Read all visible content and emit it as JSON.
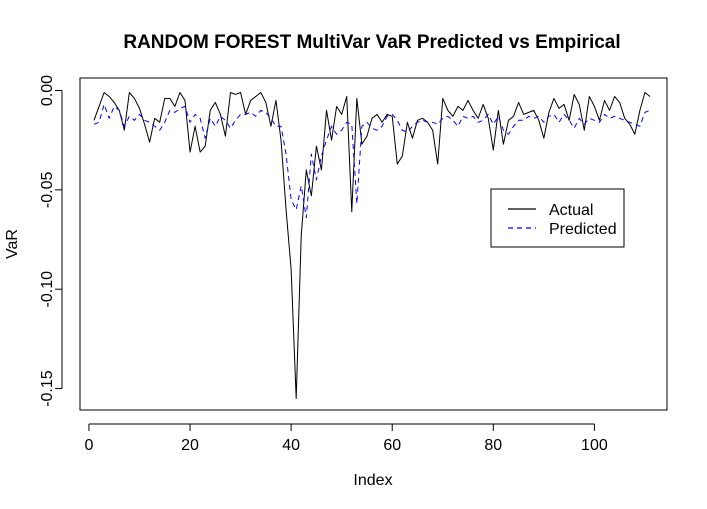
{
  "chart_data": {
    "type": "line",
    "title": "RANDOM FOREST MultiVar VaR Predicted vs Empirical",
    "xlabel": "Index",
    "ylabel": "VaR",
    "xlim": [
      1,
      111
    ],
    "ylim": [
      -0.155,
      0
    ],
    "x_ticks": [
      0,
      20,
      40,
      60,
      80,
      100
    ],
    "y_ticks": [
      -0.15,
      -0.1,
      -0.05,
      0.0
    ],
    "x_tick_labels": [
      "0",
      "20",
      "40",
      "60",
      "80",
      "100"
    ],
    "y_tick_labels": [
      "-0.15",
      "-0.10",
      "-0.05",
      "0.00"
    ],
    "legend": {
      "position": "right",
      "entries": [
        "Actual",
        "Predicted"
      ]
    },
    "series": [
      {
        "name": "Actual",
        "color": "#000000",
        "style": "solid",
        "values": [
          -0.015,
          -0.008,
          -0.001,
          -0.003,
          -0.006,
          -0.01,
          -0.02,
          -0.001,
          -0.004,
          -0.009,
          -0.017,
          -0.026,
          -0.014,
          -0.016,
          -0.004,
          -0.004,
          -0.008,
          -0.001,
          -0.005,
          -0.031,
          -0.018,
          -0.031,
          -0.028,
          -0.01,
          -0.006,
          -0.012,
          -0.023,
          -0.001,
          -0.002,
          -0.001,
          -0.012,
          -0.005,
          -0.003,
          -0.001,
          -0.006,
          -0.018,
          -0.005,
          -0.025,
          -0.06,
          -0.09,
          -0.155,
          -0.073,
          -0.04,
          -0.053,
          -0.028,
          -0.04,
          -0.01,
          -0.025,
          -0.008,
          -0.012,
          -0.003,
          -0.061,
          -0.004,
          -0.027,
          -0.023,
          -0.014,
          -0.012,
          -0.016,
          -0.012,
          -0.013,
          -0.037,
          -0.033,
          -0.016,
          -0.024,
          -0.015,
          -0.014,
          -0.016,
          -0.02,
          -0.037,
          -0.004,
          -0.01,
          -0.013,
          -0.008,
          -0.01,
          -0.005,
          -0.01,
          -0.014,
          -0.007,
          -0.014,
          -0.03,
          -0.01,
          -0.027,
          -0.015,
          -0.013,
          -0.006,
          -0.012,
          -0.011,
          -0.01,
          -0.015,
          -0.024,
          -0.011,
          -0.004,
          -0.009,
          -0.007,
          -0.015,
          -0.002,
          -0.007,
          -0.02,
          -0.003,
          -0.008,
          -0.015,
          -0.005,
          -0.01,
          -0.003,
          -0.006,
          -0.014,
          -0.017,
          -0.022,
          -0.01,
          -0.001,
          -0.003
        ]
      },
      {
        "name": "Predicted",
        "color": "#0000ff",
        "style": "dashed",
        "values": [
          -0.017,
          -0.016,
          -0.007,
          -0.014,
          -0.008,
          -0.01,
          -0.018,
          -0.013,
          -0.015,
          -0.012,
          -0.015,
          -0.016,
          -0.018,
          -0.02,
          -0.016,
          -0.01,
          -0.011,
          -0.009,
          -0.008,
          -0.016,
          -0.012,
          -0.014,
          -0.024,
          -0.014,
          -0.018,
          -0.013,
          -0.015,
          -0.019,
          -0.015,
          -0.012,
          -0.012,
          -0.011,
          -0.013,
          -0.01,
          -0.011,
          -0.014,
          -0.018,
          -0.018,
          -0.032,
          -0.055,
          -0.06,
          -0.048,
          -0.064,
          -0.032,
          -0.045,
          -0.033,
          -0.025,
          -0.018,
          -0.022,
          -0.02,
          -0.016,
          -0.017,
          -0.057,
          -0.018,
          -0.016,
          -0.019,
          -0.02,
          -0.018,
          -0.013,
          -0.012,
          -0.015,
          -0.02,
          -0.021,
          -0.018,
          -0.016,
          -0.015,
          -0.016,
          -0.016,
          -0.017,
          -0.014,
          -0.013,
          -0.015,
          -0.018,
          -0.013,
          -0.014,
          -0.013,
          -0.016,
          -0.015,
          -0.012,
          -0.017,
          -0.013,
          -0.02,
          -0.022,
          -0.018,
          -0.015,
          -0.015,
          -0.013,
          -0.014,
          -0.013,
          -0.016,
          -0.013,
          -0.012,
          -0.016,
          -0.012,
          -0.015,
          -0.019,
          -0.014,
          -0.017,
          -0.014,
          -0.015,
          -0.016,
          -0.012,
          -0.014,
          -0.013,
          -0.014,
          -0.015,
          -0.016,
          -0.017,
          -0.018,
          -0.011,
          -0.01
        ]
      }
    ]
  }
}
